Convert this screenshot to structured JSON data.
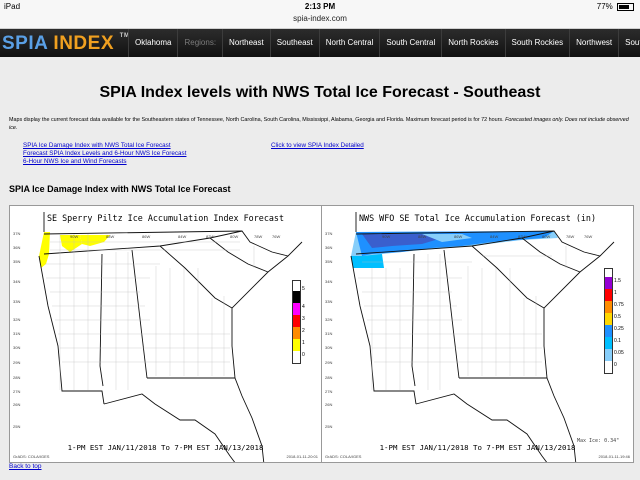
{
  "status_bar": {
    "device": "iPad",
    "time": "2:13 PM",
    "battery": "77%",
    "battery_level": 0.77
  },
  "browser": {
    "url": "spia-index.com"
  },
  "nav": {
    "logo_part1": "SPIA",
    "logo_part2": "INDEX",
    "logo_tm": "TM",
    "items": [
      "Oklahoma",
      "Regions:",
      "Northeast",
      "Southeast",
      "North Central",
      "South Central",
      "North Rockies",
      "South Rockies",
      "Northwest",
      "Southwest"
    ]
  },
  "page": {
    "title": "SPIA Index levels with NWS Total Ice Forecast - Southeast",
    "description": "Maps display the current forecast data available for the Southeastern states of Tennessee, North Carolina, South Carolina, Mississippi, Alabama, Georgia and Florida. Maximum forecast period is for 72 hours.",
    "description_note": "Forecasted images only. Does not include observed ice.",
    "links_left": [
      "SPIA Ice Damage Index with NWS Total Ice Forecast",
      "Forecast SPIA Index Levels and 6-Hour NWS Ice Forecast",
      "6-Hour NWS Ice and Wind Forecasts"
    ],
    "link_right": "Click to view SPIA Index Detailed",
    "section_title": "SPIA Ice Damage Index with NWS Total Ice Forecast",
    "back_to_top": "Back to top"
  },
  "maps": {
    "left": {
      "title": "SE Sperry Piltz Ice Accumulation Index Forecast",
      "caption": "1-PM EST JAN/11/2018 To 7-PM EST JAN/13/2018",
      "footer_left": "GrADS: COLA/IGES",
      "footer_right": "2018-01-11-20:01",
      "lat_labels": [
        "37N",
        "36N",
        "35N",
        "34N",
        "33N",
        "32N",
        "31N",
        "30N",
        "29N",
        "28N",
        "27N",
        "26N",
        "25N"
      ],
      "lon_labels": [
        "90W",
        "88W",
        "86W",
        "84W",
        "82W",
        "80W",
        "78W",
        "76W"
      ],
      "scale_labels": [
        "5",
        "4",
        "3",
        "2",
        "1",
        "0"
      ],
      "scale_colors": [
        "#ffffff",
        "#000000",
        "#ff00ff",
        "#ff0000",
        "#ff8c00",
        "#ffff00",
        "#ffffff"
      ]
    },
    "right": {
      "title": "NWS WFO SE Total Ice Accumulation Forecast (in)",
      "caption": "1-PM EST JAN/11/2018 To 7-PM EST JAN/13/2018",
      "footer_left": "GrADS: COLA/IGES",
      "footer_right": "2018-01-11-19:46",
      "max_note": "Max Ice: 0.34\"",
      "lat_labels": [
        "37N",
        "36N",
        "35N",
        "34N",
        "33N",
        "32N",
        "31N",
        "30N",
        "29N",
        "28N",
        "27N",
        "26N",
        "25N"
      ],
      "lon_labels": [
        "90W",
        "88W",
        "86W",
        "84W",
        "82W",
        "80W",
        "78W",
        "76W"
      ],
      "scale_labels": [
        "1.5",
        "1",
        "0.75",
        "0.5",
        "0.25",
        "0.1",
        "0.05",
        "0"
      ],
      "scale_colors": [
        "#ffffff",
        "#9400d3",
        "#ff0000",
        "#ff8c00",
        "#ffd700",
        "#1e90ff",
        "#00bfff",
        "#87cefa",
        "#ffffff"
      ]
    }
  }
}
